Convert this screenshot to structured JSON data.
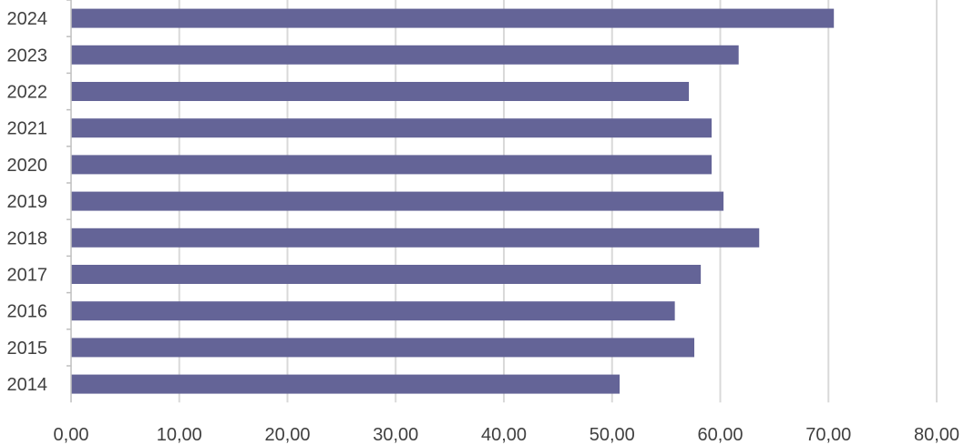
{
  "chart_data": {
    "type": "bar",
    "orientation": "horizontal",
    "title": "",
    "xlabel": "",
    "ylabel": "",
    "categories": [
      "2024",
      "2023",
      "2022",
      "2021",
      "2020",
      "2019",
      "2018",
      "2017",
      "2016",
      "2015",
      "2014"
    ],
    "values": [
      70.5,
      61.7,
      57.1,
      59.2,
      59.2,
      60.3,
      63.6,
      58.2,
      55.8,
      57.6,
      50.7
    ],
    "xlim": [
      0,
      80
    ],
    "x_ticks": [
      0,
      10,
      20,
      30,
      40,
      50,
      60,
      70,
      80
    ],
    "x_tick_labels": [
      "0,00",
      "10,00",
      "20,00",
      "30,00",
      "40,00",
      "50,00",
      "60,00",
      "70,00",
      "80,00"
    ],
    "grid": "vertical",
    "legend": "none",
    "bar_color": "#646497",
    "grid_color": "#d9d9d9",
    "axis_color": "#bfbfbf",
    "text_color": "#404040"
  }
}
